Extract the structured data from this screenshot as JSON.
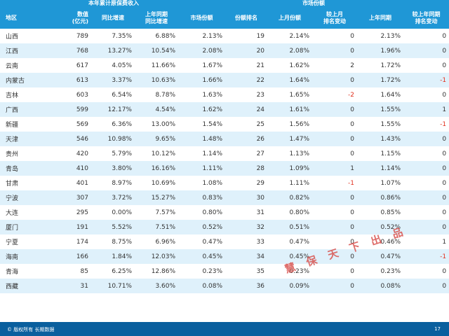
{
  "header": {
    "group_premium": "本年累计原保费收入",
    "group_share": "市场份额",
    "region": "地区",
    "value": "数值\n(亿元)",
    "yoy": "同比增速",
    "last_yoy": "上年同期\n同比增速",
    "share": "市场份额",
    "rank": "份额排名",
    "last_month_share": "上月份额",
    "rank_change_month": "较上月\n排名变动",
    "last_year_share": "上年同期",
    "rank_change_year": "较上年同期\n排名变动"
  },
  "rows": [
    [
      "山西",
      "789",
      "7.35%",
      "6.88%",
      "2.13%",
      "19",
      "2.14%",
      "0",
      "2.13%",
      "0"
    ],
    [
      "江西",
      "768",
      "13.27%",
      "10.54%",
      "2.08%",
      "20",
      "2.08%",
      "0",
      "1.96%",
      "0"
    ],
    [
      "云南",
      "617",
      "4.05%",
      "11.66%",
      "1.67%",
      "21",
      "1.62%",
      "2",
      "1.72%",
      "0"
    ],
    [
      "内蒙古",
      "613",
      "3.37%",
      "10.63%",
      "1.66%",
      "22",
      "1.64%",
      "0",
      "1.72%",
      "-1"
    ],
    [
      "吉林",
      "603",
      "6.54%",
      "8.78%",
      "1.63%",
      "23",
      "1.65%",
      "-2",
      "1.64%",
      "0"
    ],
    [
      "广西",
      "599",
      "12.17%",
      "4.54%",
      "1.62%",
      "24",
      "1.61%",
      "0",
      "1.55%",
      "1"
    ],
    [
      "新疆",
      "569",
      "6.36%",
      "13.00%",
      "1.54%",
      "25",
      "1.56%",
      "0",
      "1.55%",
      "-1"
    ],
    [
      "天津",
      "546",
      "10.98%",
      "9.65%",
      "1.48%",
      "26",
      "1.47%",
      "0",
      "1.43%",
      "0"
    ],
    [
      "贵州",
      "420",
      "5.79%",
      "10.12%",
      "1.14%",
      "27",
      "1.13%",
      "0",
      "1.15%",
      "0"
    ],
    [
      "青岛",
      "410",
      "3.80%",
      "16.16%",
      "1.11%",
      "28",
      "1.09%",
      "1",
      "1.14%",
      "0"
    ],
    [
      "甘肃",
      "401",
      "8.97%",
      "10.69%",
      "1.08%",
      "29",
      "1.11%",
      "-1",
      "1.07%",
      "0"
    ],
    [
      "宁波",
      "307",
      "3.72%",
      "15.27%",
      "0.83%",
      "30",
      "0.82%",
      "0",
      "0.86%",
      "0"
    ],
    [
      "大连",
      "295",
      "0.00%",
      "7.57%",
      "0.80%",
      "31",
      "0.80%",
      "0",
      "0.85%",
      "0"
    ],
    [
      "厦门",
      "191",
      "5.52%",
      "7.51%",
      "0.52%",
      "32",
      "0.51%",
      "0",
      "0.52%",
      "0"
    ],
    [
      "宁夏",
      "174",
      "8.75%",
      "6.96%",
      "0.47%",
      "33",
      "0.47%",
      "0",
      "0.46%",
      "1"
    ],
    [
      "海南",
      "166",
      "1.84%",
      "12.03%",
      "0.45%",
      "34",
      "0.45%",
      "0",
      "0.47%",
      "-1"
    ],
    [
      "青海",
      "85",
      "6.25%",
      "12.86%",
      "0.23%",
      "35",
      "0.23%",
      "0",
      "0.23%",
      "0"
    ],
    [
      "西藏",
      "31",
      "10.71%",
      "3.60%",
      "0.08%",
      "36",
      "0.09%",
      "0",
      "0.08%",
      "0"
    ]
  ],
  "watermark": "慧 保 天 下 出 品",
  "footer": {
    "copyright": "© 版权所有 长期数据",
    "page": "17"
  },
  "colors": {
    "header_bg": "#1f97d6",
    "stripe": "#dff1fb",
    "negative": "#e0301e",
    "footer_bg": "#0a5f9e"
  }
}
